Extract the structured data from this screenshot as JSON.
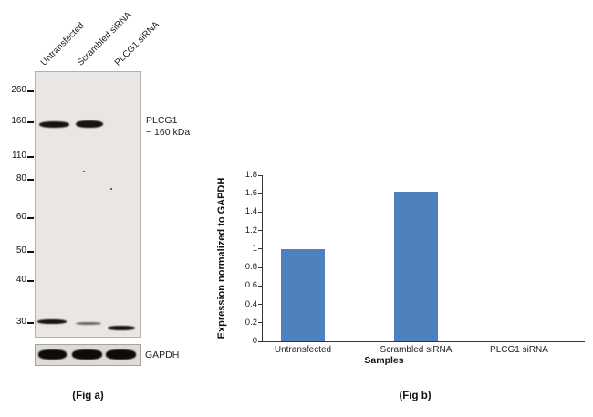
{
  "figure": {
    "fig_a_caption": "(Fig a)",
    "fig_b_caption": "(Fig b)"
  },
  "blot": {
    "lane_labels": [
      "Untransfected",
      "Scrambled siRNA",
      "PLCG1 siRNA"
    ],
    "mw_markers": [
      "260",
      "160",
      "110",
      "80",
      "60",
      "50",
      "40",
      "30"
    ],
    "band_annotation": "PLCG1",
    "band_annotation_kda": "~ 160 kDa",
    "loading_control_label": "GAPDH"
  },
  "chart_data": {
    "type": "bar",
    "categories": [
      "Untransfected",
      "Scrambled siRNA",
      "PLCG1 siRNA"
    ],
    "values": [
      1.0,
      1.62,
      0
    ],
    "title": "",
    "xlabel": "Samples",
    "ylabel": "Expression  normalized to GAPDH",
    "ylim": [
      0,
      1.8
    ],
    "ytick_step": 0.2,
    "grid": false,
    "legend": "none",
    "bar_color": "#4f81bd"
  }
}
